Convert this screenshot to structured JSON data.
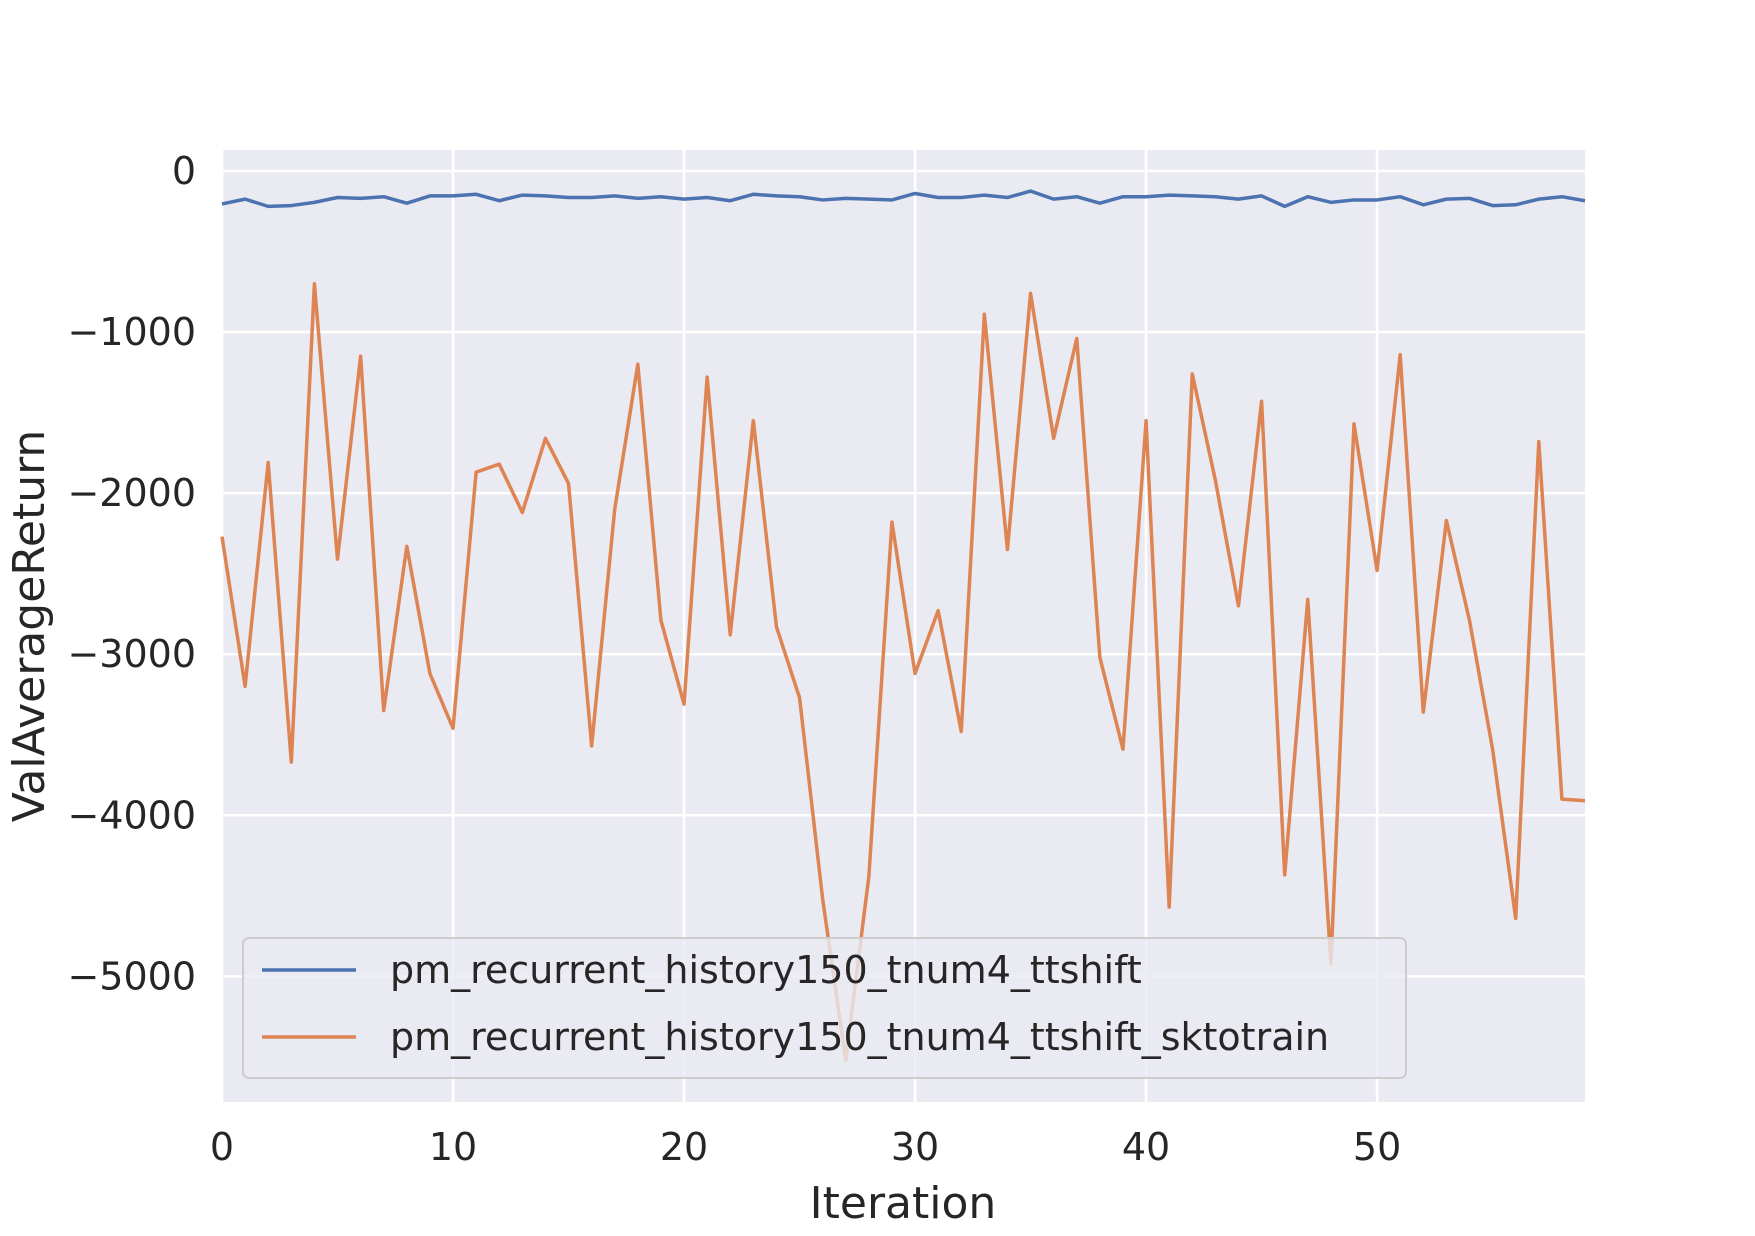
{
  "chart_data": {
    "type": "line",
    "title": "",
    "xlabel": "Iteration",
    "ylabel": "ValAverageReturn",
    "xlim": [
      0,
      59
    ],
    "ylim": [
      -5780,
      130
    ],
    "xticks": [
      0,
      10,
      20,
      30,
      40,
      50
    ],
    "yticks": [
      0,
      -1000,
      -2000,
      -3000,
      -4000,
      -5000
    ],
    "ytick_labels": [
      "0",
      "−1000",
      "−2000",
      "−3000",
      "−4000",
      "−5000"
    ],
    "grid": true,
    "legend_position": "lower-left",
    "background_color": "#eaeaf2",
    "grid_color": "#ffffff",
    "x": [
      0,
      1,
      2,
      3,
      4,
      5,
      6,
      7,
      8,
      9,
      10,
      11,
      12,
      13,
      14,
      15,
      16,
      17,
      18,
      19,
      20,
      21,
      22,
      23,
      24,
      25,
      26,
      27,
      28,
      29,
      30,
      31,
      32,
      33,
      34,
      35,
      36,
      37,
      38,
      39,
      40,
      41,
      42,
      43,
      44,
      45,
      46,
      47,
      48,
      49,
      50,
      51,
      52,
      53,
      54,
      55,
      56,
      57,
      58,
      59
    ],
    "series": [
      {
        "name": "pm_recurrent_history150_tnum4_ttshift",
        "color": "#4c72b0",
        "values": [
          -205,
          -175,
          -220,
          -215,
          -195,
          -165,
          -170,
          -160,
          -200,
          -155,
          -155,
          -145,
          -185,
          -150,
          -155,
          -165,
          -165,
          -155,
          -170,
          -160,
          -175,
          -165,
          -185,
          -145,
          -155,
          -160,
          -180,
          -170,
          -175,
          -180,
          -140,
          -165,
          -165,
          -150,
          -165,
          -125,
          -175,
          -160,
          -200,
          -160,
          -160,
          -150,
          -155,
          -160,
          -175,
          -155,
          -220,
          -160,
          -195,
          -180,
          -180,
          -160,
          -210,
          -175,
          -170,
          -215,
          -210,
          -175,
          -160,
          -185
        ]
      },
      {
        "name": "pm_recurrent_history150_tnum4_ttshift_sktotrain",
        "color": "#dd8452",
        "values": [
          -2270,
          -3200,
          -1810,
          -3670,
          -700,
          -2410,
          -1150,
          -3350,
          -2330,
          -3120,
          -3460,
          -1870,
          -1820,
          -2120,
          -1660,
          -1940,
          -3570,
          -2100,
          -1200,
          -2790,
          -3310,
          -1280,
          -2880,
          -1550,
          -2830,
          -3270,
          -4520,
          -5520,
          -4380,
          -2180,
          -3120,
          -2730,
          -3480,
          -890,
          -2350,
          -760,
          -1660,
          -1040,
          -3020,
          -3590,
          -1550,
          -4570,
          -1260,
          -1920,
          -2700,
          -1430,
          -4370,
          -2660,
          -4920,
          -1570,
          -2480,
          -1140,
          -3360,
          -2170,
          -2790,
          -3590,
          -4640,
          -1680,
          -3900,
          -3910
        ]
      }
    ]
  }
}
